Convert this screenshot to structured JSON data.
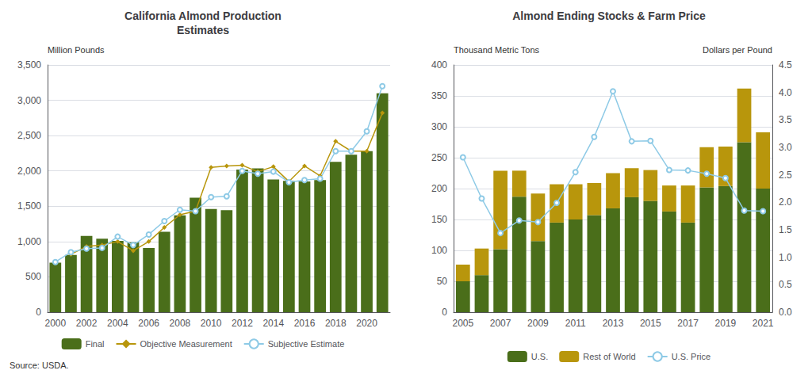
{
  "chart_data": [
    {
      "type": "bar",
      "title": "California Almond Production\nEstimates",
      "ylabel": "Million Pounds",
      "annotation": "Source: USDA.",
      "categories": [
        "2000",
        null,
        "2002",
        null,
        "2004",
        null,
        "2006",
        null,
        "2008",
        null,
        "2010",
        null,
        "2012",
        null,
        "2014",
        null,
        "2016",
        null,
        "2018",
        null,
        "2020",
        null
      ],
      "series": [
        {
          "name": "Final",
          "type": "bar",
          "color": "#4a6e1a",
          "values": [
            700,
            810,
            1080,
            1040,
            1010,
            990,
            910,
            1140,
            1370,
            1620,
            1460,
            1445,
            2020,
            2035,
            1880,
            1860,
            1850,
            1870,
            2130,
            2230,
            2280,
            3100
          ]
        },
        {
          "name": "Objective Measurement",
          "type": "line",
          "color": "#b8960c",
          "marker": "diamond",
          "values": [
            null,
            820,
            930,
            950,
            1000,
            870,
            1000,
            1200,
            1380,
            1430,
            2050,
            2070,
            2080,
            1990,
            2060,
            1850,
            2070,
            1930,
            2420,
            2280,
            2280,
            2820
          ]
        },
        {
          "name": "Subjective Estimate",
          "type": "line",
          "color": "#8ecae6",
          "marker": "circle",
          "values": [
            710,
            850,
            900,
            910,
            1070,
            950,
            1100,
            1290,
            1450,
            1430,
            1630,
            1640,
            2000,
            1960,
            1990,
            1840,
            1870,
            1890,
            2280,
            2280,
            2560,
            3200
          ]
        }
      ],
      "ylim": [
        0,
        3500
      ],
      "yticks": [
        0,
        500,
        {
          "value": 1000,
          "label": "1,000"
        },
        {
          "value": 1500,
          "label": "1,500"
        },
        {
          "value": 2000,
          "label": "2,000"
        },
        {
          "value": 2500,
          "label": "2,500"
        },
        {
          "value": 3000,
          "label": "3,000"
        },
        {
          "value": 3500,
          "label": "3,500"
        }
      ],
      "grid": true,
      "legend": "bottom"
    },
    {
      "type": "bar",
      "title": "Almond Ending Stocks & Farm Price",
      "ylabel": "Thousand Metric Tons",
      "y2label": "Dollars per Pound",
      "categories": [
        "2005",
        null,
        "2007",
        null,
        "2009",
        null,
        "2011",
        null,
        "2013",
        null,
        "2015",
        null,
        "2017",
        null,
        "2019",
        null,
        "2021"
      ],
      "series": [
        {
          "name": "U.S.",
          "type": "bar",
          "color": "#4a6e1a",
          "values": [
            50,
            60,
            102,
            187,
            115,
            145,
            150,
            157,
            168,
            186,
            180,
            163,
            145,
            202,
            204,
            275,
            200
          ]
        },
        {
          "name": "Rest of World",
          "type": "bar",
          "color": "#b8960c",
          "values": [
            27,
            43,
            127,
            42,
            77,
            62,
            57,
            52,
            57,
            47,
            50,
            42,
            60,
            65,
            64,
            87,
            91
          ]
        },
        {
          "name": "U.S. Price",
          "type": "line",
          "color": "#8ecae6",
          "marker": "circle",
          "axis": "y2",
          "values": [
            2.82,
            2.07,
            1.44,
            1.67,
            1.64,
            1.99,
            2.55,
            3.19,
            4.02,
            3.11,
            3.12,
            2.59,
            2.58,
            2.52,
            2.44,
            1.85,
            1.84
          ]
        }
      ],
      "stacked": true,
      "ylim": [
        0,
        400
      ],
      "yticks": [
        0,
        50,
        100,
        150,
        200,
        250,
        300,
        350,
        400
      ],
      "y2lim": [
        0,
        4.5
      ],
      "y2ticks": [
        {
          "value": 0,
          "label": "0.0"
        },
        0.5,
        {
          "value": 1,
          "label": "1.0"
        },
        1.5,
        {
          "value": 2,
          "label": "2.0"
        },
        2.5,
        {
          "value": 3,
          "label": "3.0"
        },
        3.5,
        {
          "value": 4,
          "label": "4.0"
        },
        4.5
      ],
      "grid": true,
      "legend": "bottom"
    }
  ]
}
